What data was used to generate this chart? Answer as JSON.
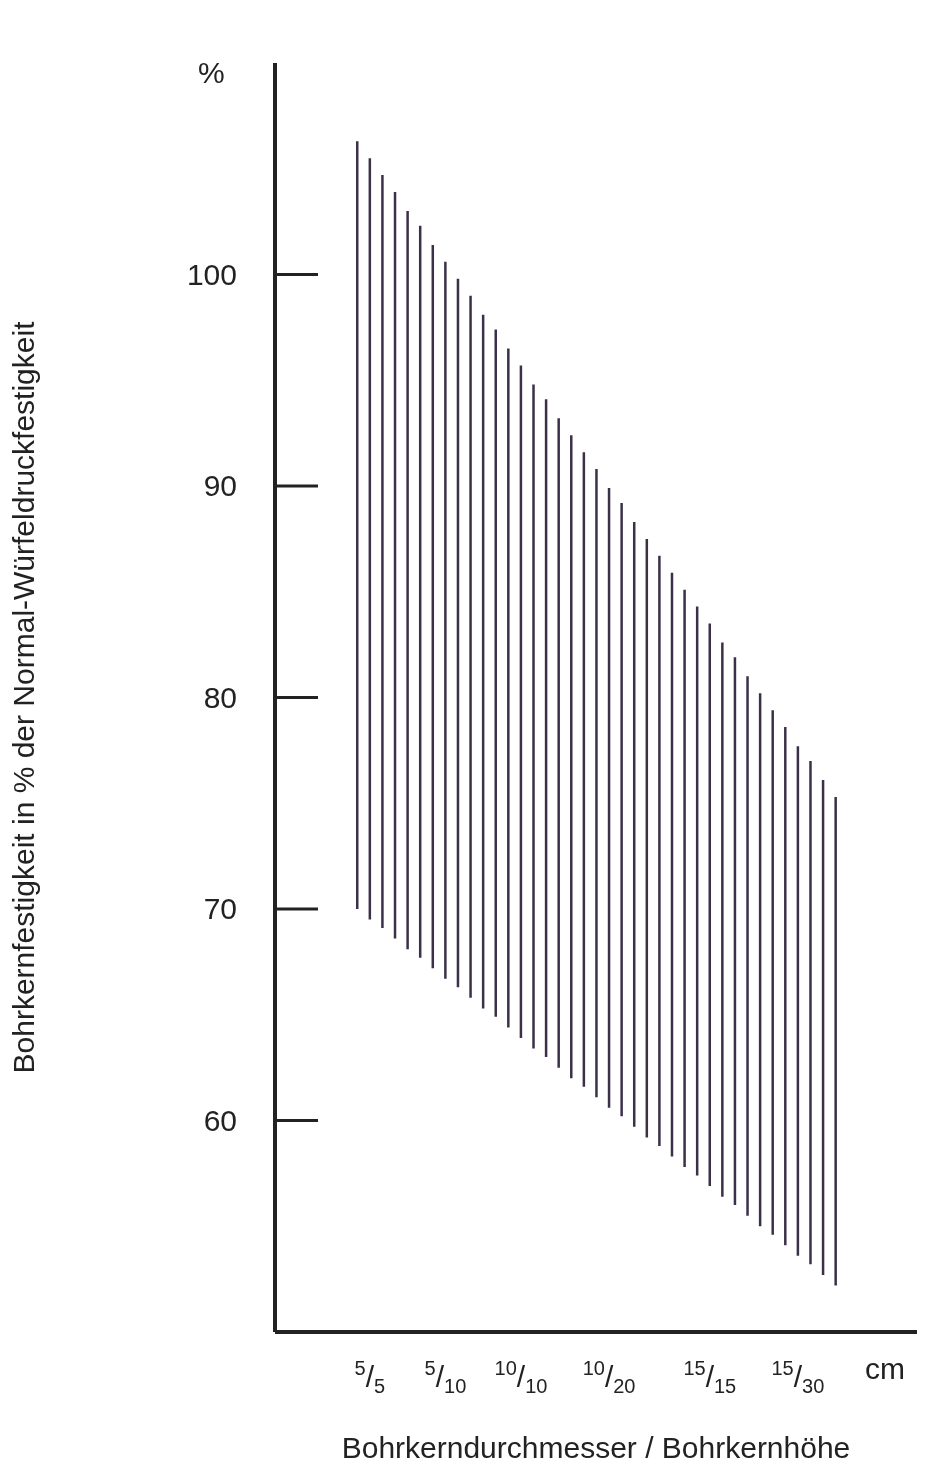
{
  "chart_data": {
    "type": "bar",
    "xlabel": "Bohrkerndurchmesser / Bohrkernhöhe",
    "ylabel": "Bohrkernfestigkeit in % der Normal-Würfeldruckfestigkeit",
    "annotations": [
      "%",
      "cm"
    ],
    "categories": [
      null,
      "$^{5}$/$_{5}$",
      null,
      null,
      null,
      null,
      null,
      "$^{5}$/$_{10}$",
      null,
      null,
      null,
      null,
      null,
      "$^{10}$/$_{10}$",
      null,
      null,
      null,
      null,
      null,
      null,
      "$^{10}$/$_{20}$",
      null,
      null,
      null,
      null,
      null,
      null,
      null,
      "$^{15}$/$_{15}$",
      null,
      null,
      null,
      null,
      null,
      null,
      "$^{15}$/$_{30}$",
      null,
      null,
      null
    ],
    "base": [
      70.0,
      69.5,
      69.1,
      68.6,
      68.1,
      67.7,
      67.2,
      66.7,
      66.3,
      65.8,
      65.3,
      64.9,
      64.4,
      63.9,
      63.4,
      63.0,
      62.5,
      62.0,
      61.6,
      61.1,
      60.6,
      60.2,
      59.7,
      59.2,
      58.8,
      58.3,
      57.8,
      57.4,
      56.9,
      56.4,
      56.0,
      55.5,
      55.0,
      54.6,
      54.1,
      53.6,
      53.2,
      52.7,
      52.2
    ],
    "values": [
      36.3,
      36.0,
      35.6,
      35.3,
      34.9,
      34.6,
      34.2,
      33.9,
      33.5,
      33.2,
      32.8,
      32.5,
      32.1,
      31.8,
      31.4,
      31.1,
      30.7,
      30.4,
      30.0,
      29.7,
      29.3,
      29.0,
      28.6,
      28.3,
      27.9,
      27.6,
      27.3,
      26.9,
      26.6,
      26.2,
      25.9,
      25.5,
      25.2,
      24.8,
      24.5,
      24.1,
      23.8,
      23.4,
      23.1
    ],
    "color": "#3b3048",
    "ylim": [
      50,
      110
    ],
    "yticks": [
      60,
      70,
      80,
      90,
      100
    ]
  }
}
